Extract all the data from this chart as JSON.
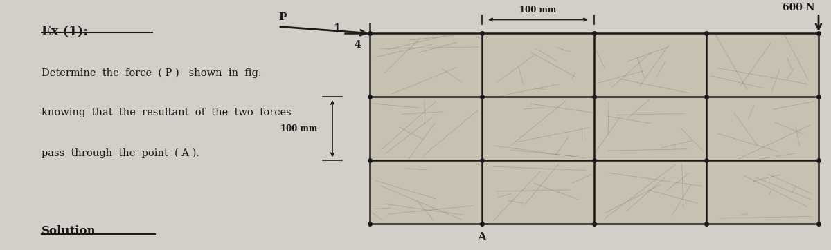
{
  "bg_color": "#d4cec8",
  "text_color": "#1a1a1a",
  "title": "Ex (1):",
  "line1": "Determine  the  force  ( P )   shown  in  fig.",
  "line2": "knowing  that  the  resultant  of  the  two  forces",
  "line3": "pass  through  the  point  ( A ).",
  "solution": "Solution",
  "grid_color": "#1a1a1a",
  "marble_color": "#c8c0b0",
  "force_600_label": "600 N",
  "force_P_label": "P",
  "dim_100mm_h": "100 mm",
  "dim_100mm_v": "100 mm",
  "ratio_1": "1",
  "ratio_4": "4",
  "point_A": "A"
}
